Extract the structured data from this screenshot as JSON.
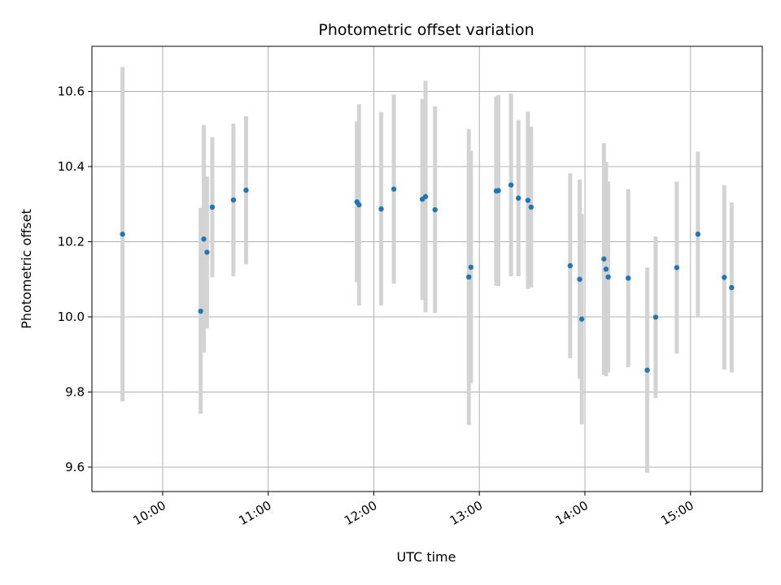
{
  "chart_data": {
    "type": "scatter",
    "title": "Photometric offset variation",
    "xlabel": "UTC time",
    "ylabel": "Photometric offset",
    "x_unit": "hour",
    "xlim": [
      9.33,
      15.68
    ],
    "ylim": [
      9.535,
      10.72
    ],
    "x_ticks": [
      {
        "value": 10,
        "label": "10:00"
      },
      {
        "value": 11,
        "label": "11:00"
      },
      {
        "value": 12,
        "label": "12:00"
      },
      {
        "value": 13,
        "label": "13:00"
      },
      {
        "value": 14,
        "label": "14:00"
      },
      {
        "value": 15,
        "label": "15:00"
      }
    ],
    "y_ticks": [
      {
        "value": 9.6,
        "label": "9.6"
      },
      {
        "value": 9.8,
        "label": "9.8"
      },
      {
        "value": 10.0,
        "label": "10.0"
      },
      {
        "value": 10.2,
        "label": "10.2"
      },
      {
        "value": 10.4,
        "label": "10.4"
      },
      {
        "value": 10.6,
        "label": "10.6"
      }
    ],
    "grid": true,
    "colors": {
      "marker": "#1f77b4",
      "errorbar": "#d3d3d3",
      "grid": "#b0b0b0"
    },
    "points": [
      {
        "x": 9.62,
        "y": 10.22,
        "lo": 9.775,
        "hi": 10.665
      },
      {
        "x": 10.36,
        "y": 10.015,
        "lo": 9.742,
        "hi": 10.29
      },
      {
        "x": 10.39,
        "y": 10.207,
        "lo": 9.905,
        "hi": 10.51
      },
      {
        "x": 10.42,
        "y": 10.172,
        "lo": 9.97,
        "hi": 10.374
      },
      {
        "x": 10.47,
        "y": 10.292,
        "lo": 10.105,
        "hi": 10.478
      },
      {
        "x": 10.67,
        "y": 10.311,
        "lo": 10.108,
        "hi": 10.514
      },
      {
        "x": 10.79,
        "y": 10.337,
        "lo": 10.14,
        "hi": 10.534
      },
      {
        "x": 11.84,
        "y": 10.306,
        "lo": 10.092,
        "hi": 10.52
      },
      {
        "x": 11.86,
        "y": 10.298,
        "lo": 10.03,
        "hi": 10.566
      },
      {
        "x": 12.07,
        "y": 10.287,
        "lo": 10.03,
        "hi": 10.545
      },
      {
        "x": 12.19,
        "y": 10.34,
        "lo": 10.088,
        "hi": 10.592
      },
      {
        "x": 12.46,
        "y": 10.313,
        "lo": 10.045,
        "hi": 10.58
      },
      {
        "x": 12.49,
        "y": 10.32,
        "lo": 10.012,
        "hi": 10.628
      },
      {
        "x": 12.58,
        "y": 10.285,
        "lo": 10.01,
        "hi": 10.56
      },
      {
        "x": 12.9,
        "y": 10.106,
        "lo": 9.712,
        "hi": 10.5
      },
      {
        "x": 12.92,
        "y": 10.132,
        "lo": 9.822,
        "hi": 10.442
      },
      {
        "x": 13.16,
        "y": 10.335,
        "lo": 10.083,
        "hi": 10.587
      },
      {
        "x": 13.18,
        "y": 10.336,
        "lo": 10.082,
        "hi": 10.59
      },
      {
        "x": 13.3,
        "y": 10.351,
        "lo": 10.108,
        "hi": 10.594
      },
      {
        "x": 13.37,
        "y": 10.316,
        "lo": 10.108,
        "hi": 10.524
      },
      {
        "x": 13.46,
        "y": 10.31,
        "lo": 10.074,
        "hi": 10.546
      },
      {
        "x": 13.49,
        "y": 10.292,
        "lo": 10.078,
        "hi": 10.506
      },
      {
        "x": 13.86,
        "y": 10.136,
        "lo": 9.89,
        "hi": 10.382
      },
      {
        "x": 13.95,
        "y": 10.1,
        "lo": 9.835,
        "hi": 10.365
      },
      {
        "x": 13.97,
        "y": 9.994,
        "lo": 9.714,
        "hi": 10.274
      },
      {
        "x": 14.18,
        "y": 10.154,
        "lo": 9.846,
        "hi": 10.462
      },
      {
        "x": 14.2,
        "y": 10.127,
        "lo": 9.842,
        "hi": 10.412
      },
      {
        "x": 14.22,
        "y": 10.106,
        "lo": 9.852,
        "hi": 10.36
      },
      {
        "x": 14.41,
        "y": 10.103,
        "lo": 9.866,
        "hi": 10.34
      },
      {
        "x": 14.59,
        "y": 9.858,
        "lo": 9.585,
        "hi": 10.131
      },
      {
        "x": 14.67,
        "y": 9.999,
        "lo": 9.784,
        "hi": 10.214
      },
      {
        "x": 14.87,
        "y": 10.131,
        "lo": 9.902,
        "hi": 10.36
      },
      {
        "x": 15.07,
        "y": 10.22,
        "lo": 10.0,
        "hi": 10.44
      },
      {
        "x": 15.32,
        "y": 10.105,
        "lo": 9.86,
        "hi": 10.35
      },
      {
        "x": 15.39,
        "y": 10.078,
        "lo": 9.852,
        "hi": 10.304
      }
    ]
  }
}
